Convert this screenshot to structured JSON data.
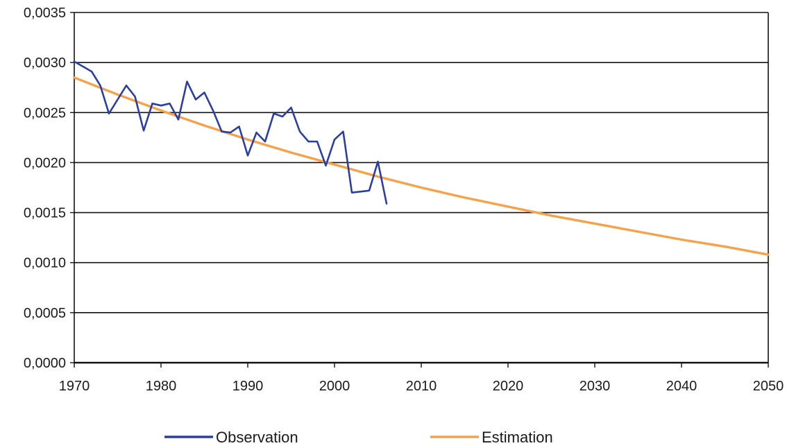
{
  "chart_data": {
    "type": "line",
    "title": "",
    "xlabel": "",
    "ylabel": "",
    "xlim": [
      1970,
      2050
    ],
    "ylim": [
      0,
      0.0035
    ],
    "grid": "horizontal",
    "legend_position": "bottom",
    "x_ticks": [
      "1970",
      "1980",
      "1990",
      "2000",
      "2010",
      "2020",
      "2030",
      "2040",
      "2050"
    ],
    "y_ticks": [
      "0,0000",
      "0,0005",
      "0,0010",
      "0,0015",
      "0,0020",
      "0,0025",
      "0,0030",
      "0,0035"
    ],
    "series": [
      {
        "name": "Observation",
        "color": "#2b3fa0",
        "x": [
          1970,
          1971,
          1972,
          1973,
          1974,
          1975,
          1976,
          1977,
          1978,
          1979,
          1980,
          1981,
          1982,
          1983,
          1984,
          1985,
          1986,
          1987,
          1988,
          1989,
          1990,
          1991,
          1992,
          1993,
          1994,
          1995,
          1996,
          1997,
          1998,
          1999,
          2000,
          2001,
          2002,
          2003,
          2004,
          2005,
          2006
        ],
        "y": [
          0.00301,
          0.00296,
          0.00291,
          0.00277,
          0.00249,
          0.00263,
          0.00277,
          0.00266,
          0.00232,
          0.00259,
          0.00257,
          0.00259,
          0.00243,
          0.00281,
          0.00263,
          0.0027,
          0.00252,
          0.00231,
          0.0023,
          0.00236,
          0.00207,
          0.0023,
          0.00221,
          0.00249,
          0.00246,
          0.00255,
          0.00231,
          0.00221,
          0.00221,
          0.00197,
          0.00223,
          0.00231,
          0.0017,
          0.00171,
          0.00172,
          0.00201,
          0.00159
        ]
      },
      {
        "name": "Estimation",
        "color": "#f5a24b",
        "x": [
          1970,
          1975,
          1980,
          1985,
          1990,
          1995,
          2000,
          2005,
          2010,
          2015,
          2020,
          2025,
          2030,
          2035,
          2040,
          2045,
          2050
        ],
        "y": [
          0.00285,
          0.00268,
          0.00252,
          0.00237,
          0.00223,
          0.0021,
          0.00198,
          0.00186,
          0.00175,
          0.00165,
          0.00156,
          0.00147,
          0.00139,
          0.00131,
          0.00123,
          0.00116,
          0.00108
        ]
      }
    ]
  }
}
